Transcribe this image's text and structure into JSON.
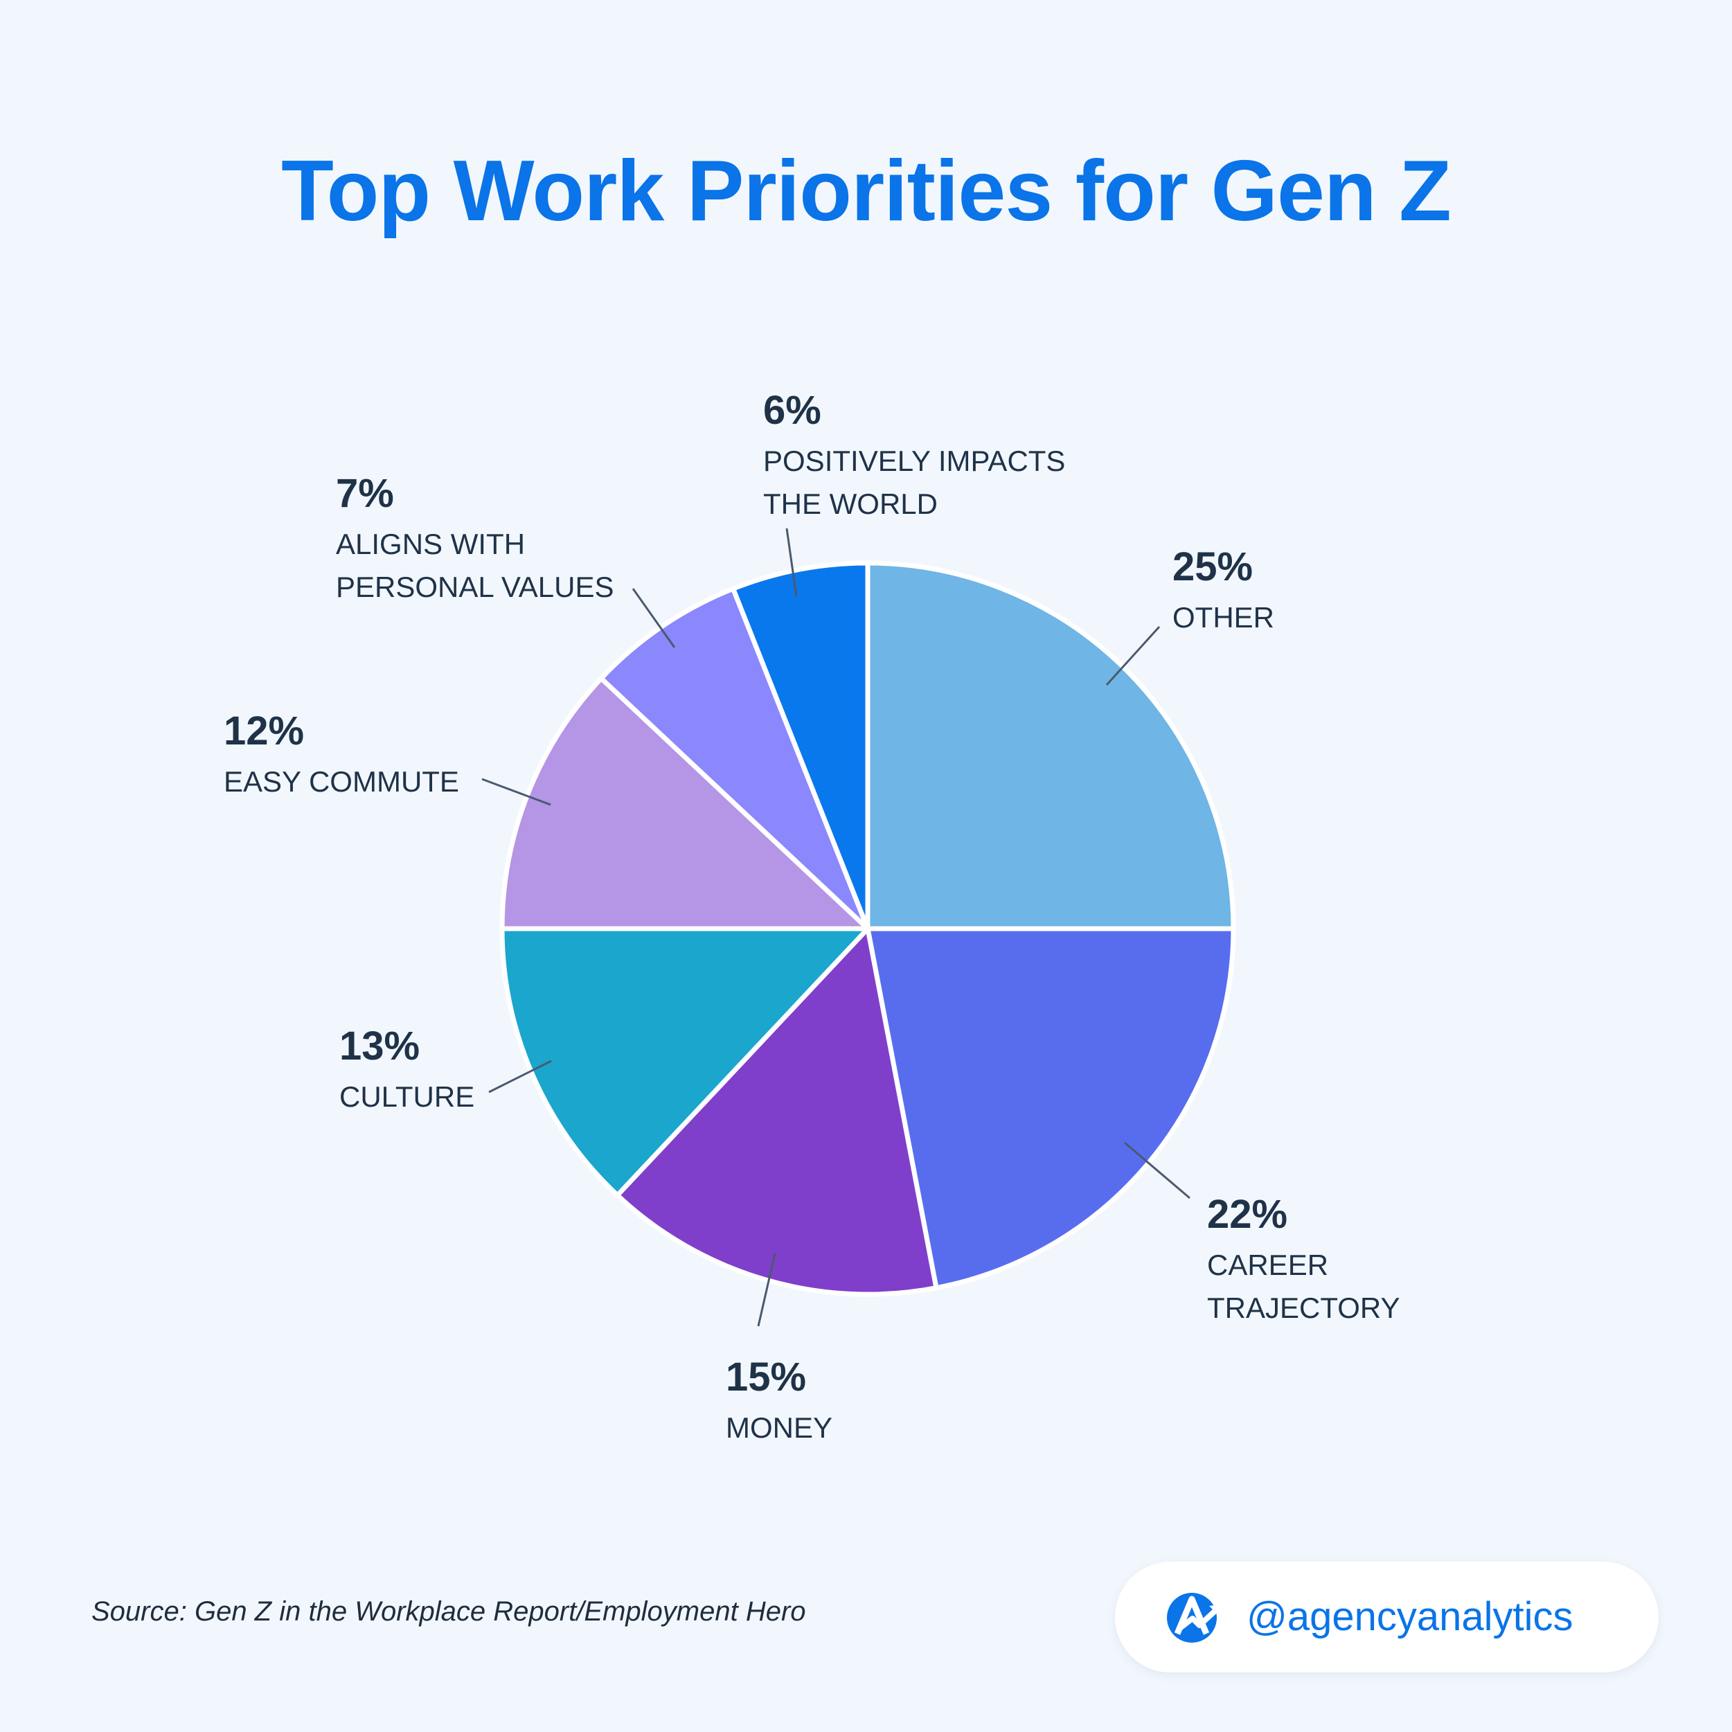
{
  "title": "Top Work Priorities for Gen Z",
  "source": "Source: Gen Z in the Workplace Report/Employment Hero",
  "brand": {
    "handle": "@agencyanalytics",
    "logo_icon": "agencyanalytics-logo-icon",
    "color": "#0a74e8"
  },
  "colors": {
    "background": "#f2f7fd",
    "title": "#0a74e8",
    "label": "#1f3248",
    "leader_line": "#4a5a6e"
  },
  "chart_data": {
    "type": "pie",
    "title": "Top Work Priorities for Gen Z",
    "unit": "%",
    "start_angle_deg": 0,
    "direction": "clockwise",
    "slices": [
      {
        "value": 25,
        "pct_label": "25%",
        "label_lines": [
          "OTHER"
        ],
        "color": "#6fb5e6"
      },
      {
        "value": 22,
        "pct_label": "22%",
        "label_lines": [
          "CAREER",
          "TRAJECTORY"
        ],
        "color": "#586dee"
      },
      {
        "value": 15,
        "pct_label": "15%",
        "label_lines": [
          "MONEY"
        ],
        "color": "#7f3fca"
      },
      {
        "value": 13,
        "pct_label": "13%",
        "label_lines": [
          "CULTURE"
        ],
        "color": "#1aa6cd"
      },
      {
        "value": 12,
        "pct_label": "12%",
        "label_lines": [
          "EASY COMMUTE"
        ],
        "color": "#b595e6"
      },
      {
        "value": 7,
        "pct_label": "7%",
        "label_lines": [
          "ALIGNS WITH",
          "PERSONAL VALUES"
        ],
        "color": "#8b87fd"
      },
      {
        "value": 6,
        "pct_label": "6%",
        "label_lines": [
          "POSITIVELY IMPACTS",
          "THE WORLD"
        ],
        "color": "#0a78ed"
      }
    ]
  }
}
